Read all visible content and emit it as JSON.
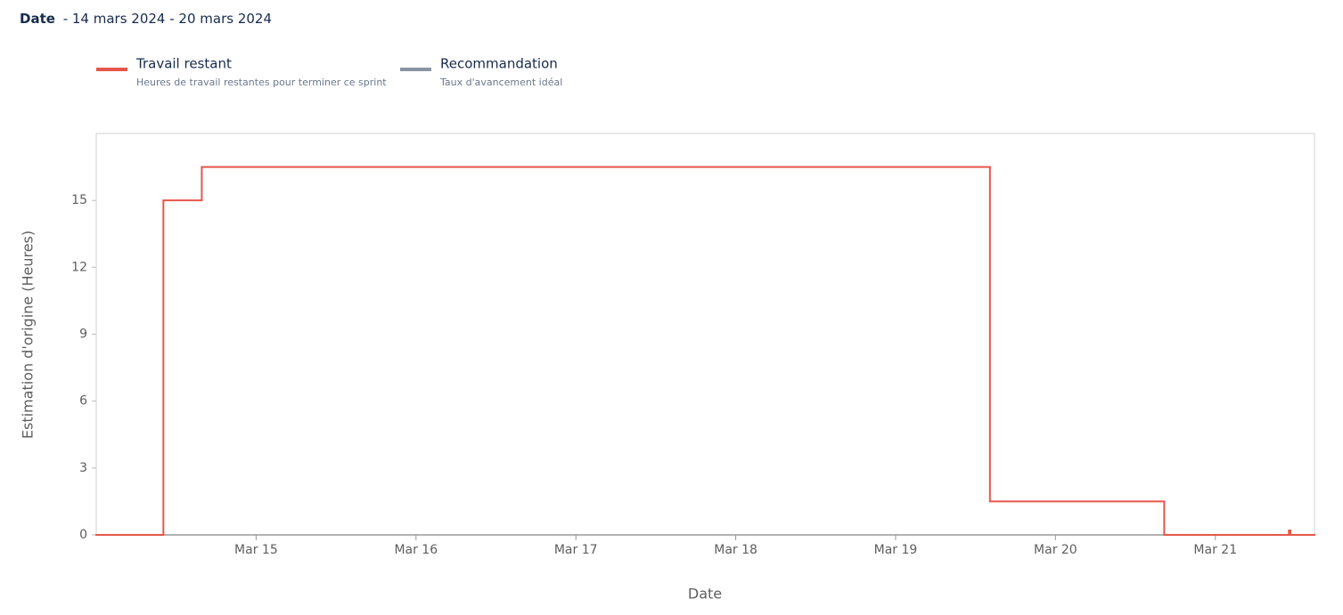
{
  "header": {
    "label": "Date",
    "range": "- 14 mars 2024 - 20 mars 2024"
  },
  "chart_data": {
    "type": "step",
    "xlabel": "Date",
    "ylabel": "Estimation d'origine (Heures)",
    "xlim": [
      14,
      21.62
    ],
    "ylim": [
      0,
      18
    ],
    "xticks": [
      {
        "value": 15,
        "label": "Mar 15"
      },
      {
        "value": 16,
        "label": "Mar 16"
      },
      {
        "value": 17,
        "label": "Mar 17"
      },
      {
        "value": 18,
        "label": "Mar 18"
      },
      {
        "value": 19,
        "label": "Mar 19"
      },
      {
        "value": 20,
        "label": "Mar 20"
      },
      {
        "value": 21,
        "label": "Mar 21"
      }
    ],
    "yticks": [
      0,
      3,
      6,
      9,
      12,
      15
    ],
    "series": [
      {
        "name": "Travail restant",
        "description": "Heures de travail restantes pour terminer ce sprint",
        "color": "#e5574b",
        "x": [
          14,
          14.42,
          14.66,
          19.59,
          20.68,
          21.46,
          21.47,
          21.62
        ],
        "values": [
          0,
          15,
          16.5,
          1.5,
          0,
          0.2,
          0,
          0
        ]
      },
      {
        "name": "Recommandation",
        "description": "Taux d'avancement idéal",
        "color": "#8993a4",
        "x": [],
        "values": []
      }
    ]
  }
}
